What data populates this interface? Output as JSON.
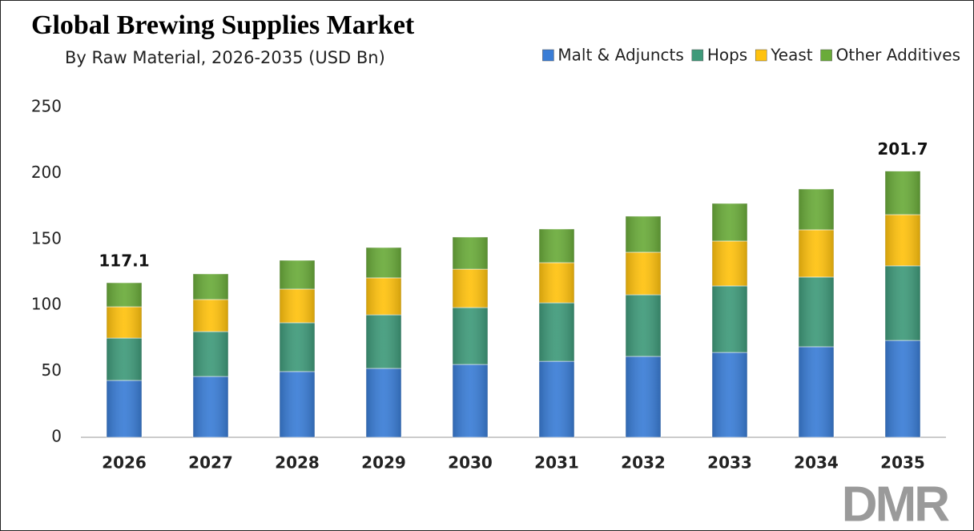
{
  "chart_data": {
    "type": "stacked-bar",
    "title": "Global Brewing Supplies Market",
    "subtitle": "By Raw Material, 2026-2035 (USD Bn)",
    "categories": [
      "2026",
      "2027",
      "2028",
      "2029",
      "2030",
      "2031",
      "2032",
      "2033",
      "2034",
      "2035"
    ],
    "series": [
      {
        "name": "Malt & Adjuncts",
        "color": "#3a7dd6",
        "values": [
          43.1,
          46.1,
          49.8,
          52.2,
          55.2,
          57.6,
          61.3,
          64.3,
          68.6,
          73.4
        ]
      },
      {
        "name": "Hops",
        "color": "#3f9a7a",
        "values": [
          32.1,
          34.0,
          37.0,
          40.6,
          43.1,
          44.3,
          46.7,
          50.4,
          52.8,
          56.5
        ]
      },
      {
        "name": "Yeast",
        "color": "#ffc20e",
        "values": [
          23.7,
          24.3,
          25.5,
          28.0,
          29.1,
          30.4,
          32.2,
          34.0,
          35.8,
          38.8
        ]
      },
      {
        "name": "Other Additives",
        "color": "#6aab3a",
        "values": [
          18.2,
          19.4,
          21.8,
          23.0,
          24.3,
          25.5,
          27.3,
          28.5,
          30.9,
          33.0
        ]
      }
    ],
    "total_labels": [
      117.1,
      null,
      null,
      null,
      null,
      null,
      null,
      null,
      null,
      201.7
    ],
    "ylim": [
      0,
      250
    ],
    "yticks": [
      0,
      50,
      100,
      150,
      200,
      250
    ],
    "grid": false,
    "legend": "top-right"
  },
  "logo": "DMR"
}
